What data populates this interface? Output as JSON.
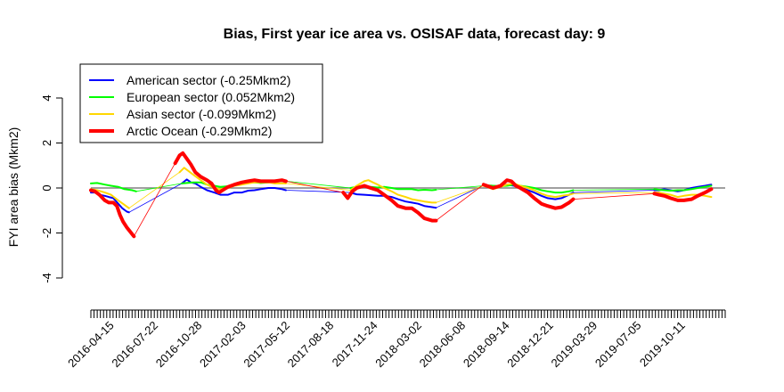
{
  "chart_data": {
    "type": "line",
    "title": "Bias, First year ice area vs. OSISAF data, forecast day: 9",
    "xlabel": "",
    "ylabel": "FYI area bias (Mkm2)",
    "ylim": [
      -4,
      4
    ],
    "y_ticks": [
      -4,
      -2,
      0,
      2,
      4
    ],
    "x_tick_labels": [
      "2016-04-15",
      "2016-07-22",
      "2016-10-28",
      "2017-02-03",
      "2017-05-12",
      "2017-08-18",
      "2017-11-24",
      "2018-03-02",
      "2018-06-08",
      "2018-09-14",
      "2018-12-21",
      "2019-03-29",
      "2019-07-05",
      "2019-10-11"
    ],
    "x_start": "2016-03-01",
    "x_end": "2020-01-15",
    "grid": false,
    "legend_position": "top-left",
    "zero_line": true,
    "zero_line_color": "#808080",
    "series": [
      {
        "name": "American sector (-0.25Mkm2)",
        "color": "#0000ff",
        "width": 2,
        "points": [
          [
            "2016-03-01",
            -0.2
          ],
          [
            "2016-03-10",
            -0.2
          ],
          [
            "2016-03-20",
            -0.3
          ],
          [
            "2016-04-01",
            -0.35
          ],
          [
            "2016-04-10",
            -0.4
          ],
          [
            "2016-04-20",
            -0.45
          ],
          [
            "2016-05-01",
            -0.7
          ],
          [
            "2016-05-10",
            -0.9
          ],
          [
            "2016-05-20",
            -1.05
          ],
          [
            "2016-05-25",
            -1.08
          ],
          [
            "2016-09-20",
            0.2
          ],
          [
            "2016-10-01",
            0.38
          ],
          [
            "2016-10-10",
            0.25
          ],
          [
            "2016-10-20",
            0.2
          ],
          [
            "2016-11-01",
            0.05
          ],
          [
            "2016-11-15",
            -0.1
          ],
          [
            "2016-12-01",
            -0.2
          ],
          [
            "2016-12-15",
            -0.3
          ],
          [
            "2017-01-01",
            -0.3
          ],
          [
            "2017-01-15",
            -0.2
          ],
          [
            "2017-02-01",
            -0.2
          ],
          [
            "2017-02-15",
            -0.12
          ],
          [
            "2017-03-01",
            -0.1
          ],
          [
            "2017-03-15",
            -0.05
          ],
          [
            "2017-04-01",
            0.0
          ],
          [
            "2017-04-15",
            0.0
          ],
          [
            "2017-05-01",
            -0.05
          ],
          [
            "2017-05-10",
            -0.1
          ],
          [
            "2017-10-01",
            -0.2
          ],
          [
            "2017-10-15",
            -0.28
          ],
          [
            "2017-11-01",
            -0.3
          ],
          [
            "2017-11-15",
            -0.32
          ],
          [
            "2017-12-01",
            -0.35
          ],
          [
            "2017-12-15",
            -0.35
          ],
          [
            "2018-01-01",
            -0.4
          ],
          [
            "2018-01-15",
            -0.5
          ],
          [
            "2018-02-01",
            -0.6
          ],
          [
            "2018-02-15",
            -0.65
          ],
          [
            "2018-03-01",
            -0.7
          ],
          [
            "2018-03-15",
            -0.8
          ],
          [
            "2018-04-01",
            -0.85
          ],
          [
            "2018-04-10",
            -0.88
          ],
          [
            "2018-07-25",
            0.12
          ],
          [
            "2018-08-01",
            0.1
          ],
          [
            "2018-08-15",
            0.05
          ],
          [
            "2018-09-01",
            0.1
          ],
          [
            "2018-09-15",
            0.15
          ],
          [
            "2018-10-01",
            0.1
          ],
          [
            "2018-10-15",
            0.0
          ],
          [
            "2018-11-01",
            -0.1
          ],
          [
            "2018-11-15",
            -0.2
          ],
          [
            "2018-12-01",
            -0.35
          ],
          [
            "2018-12-15",
            -0.45
          ],
          [
            "2019-01-01",
            -0.5
          ],
          [
            "2019-01-15",
            -0.45
          ],
          [
            "2019-02-01",
            -0.3
          ],
          [
            "2019-02-10",
            -0.2
          ],
          [
            "2019-08-10",
            -0.1
          ],
          [
            "2019-08-20",
            -0.1
          ],
          [
            "2019-09-01",
            -0.05
          ],
          [
            "2019-09-15",
            -0.1
          ],
          [
            "2019-10-01",
            -0.15
          ],
          [
            "2019-10-15",
            -0.1
          ],
          [
            "2019-11-01",
            0.0
          ],
          [
            "2019-11-15",
            0.05
          ],
          [
            "2019-12-01",
            0.1
          ],
          [
            "2019-12-15",
            0.15
          ]
        ]
      },
      {
        "name": "European sector (0.052Mkm2)",
        "color": "#00ff00",
        "width": 2,
        "points": [
          [
            "2016-03-01",
            0.2
          ],
          [
            "2016-03-15",
            0.22
          ],
          [
            "2016-04-01",
            0.15
          ],
          [
            "2016-04-15",
            0.1
          ],
          [
            "2016-05-01",
            0.05
          ],
          [
            "2016-05-15",
            -0.05
          ],
          [
            "2016-06-01",
            -0.1
          ],
          [
            "2016-06-10",
            -0.15
          ],
          [
            "2016-09-20",
            0.2
          ],
          [
            "2016-10-01",
            0.22
          ],
          [
            "2016-10-15",
            0.25
          ],
          [
            "2016-11-01",
            0.25
          ],
          [
            "2016-11-15",
            0.15
          ],
          [
            "2016-12-01",
            0.1
          ],
          [
            "2016-12-15",
            0.05
          ],
          [
            "2017-01-01",
            0.08
          ],
          [
            "2017-01-15",
            0.15
          ],
          [
            "2017-02-01",
            0.2
          ],
          [
            "2017-02-15",
            0.25
          ],
          [
            "2017-03-01",
            0.25
          ],
          [
            "2017-03-15",
            0.22
          ],
          [
            "2017-04-01",
            0.25
          ],
          [
            "2017-04-15",
            0.28
          ],
          [
            "2017-05-01",
            0.3
          ],
          [
            "2017-05-10",
            0.3
          ],
          [
            "2017-10-01",
            0.0
          ],
          [
            "2017-10-15",
            0.05
          ],
          [
            "2017-11-01",
            0.1
          ],
          [
            "2017-11-15",
            0.05
          ],
          [
            "2017-12-01",
            0.02
          ],
          [
            "2017-12-15",
            0.05
          ],
          [
            "2018-01-01",
            0.0
          ],
          [
            "2018-01-15",
            -0.05
          ],
          [
            "2018-02-01",
            -0.05
          ],
          [
            "2018-02-15",
            -0.05
          ],
          [
            "2018-03-01",
            -0.1
          ],
          [
            "2018-03-15",
            -0.08
          ],
          [
            "2018-04-01",
            -0.1
          ],
          [
            "2018-04-10",
            -0.08
          ],
          [
            "2018-07-25",
            0.1
          ],
          [
            "2018-08-01",
            0.12
          ],
          [
            "2018-08-15",
            0.1
          ],
          [
            "2018-09-01",
            0.08
          ],
          [
            "2018-09-15",
            0.1
          ],
          [
            "2018-10-01",
            0.15
          ],
          [
            "2018-10-15",
            0.1
          ],
          [
            "2018-11-01",
            0.05
          ],
          [
            "2018-11-15",
            0.0
          ],
          [
            "2018-12-01",
            -0.1
          ],
          [
            "2018-12-15",
            -0.15
          ],
          [
            "2019-01-01",
            -0.2
          ],
          [
            "2019-01-15",
            -0.2
          ],
          [
            "2019-02-01",
            -0.15
          ],
          [
            "2019-02-10",
            -0.1
          ],
          [
            "2019-08-10",
            -0.05
          ],
          [
            "2019-08-20",
            -0.08
          ],
          [
            "2019-09-01",
            -0.1
          ],
          [
            "2019-09-15",
            -0.12
          ],
          [
            "2019-10-01",
            -0.1
          ],
          [
            "2019-10-15",
            -0.1
          ],
          [
            "2019-11-01",
            -0.05
          ],
          [
            "2019-11-15",
            0.0
          ],
          [
            "2019-12-01",
            0.05
          ],
          [
            "2019-12-15",
            0.1
          ]
        ]
      },
      {
        "name": "Asian sector (-0.099Mkm2)",
        "color": "#ffd700",
        "width": 2,
        "points": [
          [
            "2016-03-01",
            -0.05
          ],
          [
            "2016-03-15",
            -0.1
          ],
          [
            "2016-04-01",
            -0.2
          ],
          [
            "2016-04-15",
            -0.3
          ],
          [
            "2016-05-01",
            -0.55
          ],
          [
            "2016-05-15",
            -0.75
          ],
          [
            "2016-05-25",
            -0.9
          ],
          [
            "2016-09-15",
            0.7
          ],
          [
            "2016-09-25",
            0.9
          ],
          [
            "2016-10-05",
            0.75
          ],
          [
            "2016-10-15",
            0.6
          ],
          [
            "2016-11-01",
            0.35
          ],
          [
            "2016-11-15",
            0.15
          ],
          [
            "2016-12-01",
            0.0
          ],
          [
            "2016-12-15",
            -0.05
          ],
          [
            "2017-01-01",
            0.0
          ],
          [
            "2017-01-15",
            0.1
          ],
          [
            "2017-02-01",
            0.15
          ],
          [
            "2017-02-15",
            0.2
          ],
          [
            "2017-03-01",
            0.25
          ],
          [
            "2017-03-15",
            0.25
          ],
          [
            "2017-04-01",
            0.25
          ],
          [
            "2017-04-15",
            0.2
          ],
          [
            "2017-05-01",
            0.2
          ],
          [
            "2017-05-10",
            0.2
          ],
          [
            "2017-10-01",
            -0.1
          ],
          [
            "2017-10-15",
            0.1
          ],
          [
            "2017-11-01",
            0.3
          ],
          [
            "2017-11-10",
            0.35
          ],
          [
            "2017-11-20",
            0.25
          ],
          [
            "2017-12-01",
            0.15
          ],
          [
            "2017-12-15",
            0.0
          ],
          [
            "2018-01-01",
            -0.15
          ],
          [
            "2018-01-15",
            -0.3
          ],
          [
            "2018-02-01",
            -0.4
          ],
          [
            "2018-02-15",
            -0.5
          ],
          [
            "2018-03-01",
            -0.55
          ],
          [
            "2018-03-15",
            -0.6
          ],
          [
            "2018-04-01",
            -0.65
          ],
          [
            "2018-04-10",
            -0.65
          ],
          [
            "2018-07-25",
            0.1
          ],
          [
            "2018-08-01",
            0.05
          ],
          [
            "2018-08-15",
            -0.05
          ],
          [
            "2018-09-01",
            0.05
          ],
          [
            "2018-09-15",
            0.15
          ],
          [
            "2018-10-01",
            0.2
          ],
          [
            "2018-10-15",
            0.1
          ],
          [
            "2018-11-01",
            0.0
          ],
          [
            "2018-11-15",
            -0.1
          ],
          [
            "2018-12-01",
            -0.25
          ],
          [
            "2018-12-15",
            -0.35
          ],
          [
            "2019-01-01",
            -0.4
          ],
          [
            "2019-01-15",
            -0.35
          ],
          [
            "2019-02-01",
            -0.3
          ],
          [
            "2019-02-10",
            -0.25
          ],
          [
            "2019-08-10",
            -0.2
          ],
          [
            "2019-08-20",
            -0.2
          ],
          [
            "2019-09-01",
            -0.25
          ],
          [
            "2019-09-15",
            -0.3
          ],
          [
            "2019-10-01",
            -0.4
          ],
          [
            "2019-10-15",
            -0.35
          ],
          [
            "2019-11-01",
            -0.3
          ],
          [
            "2019-11-15",
            -0.3
          ],
          [
            "2019-12-01",
            -0.35
          ],
          [
            "2019-12-15",
            -0.4
          ]
        ]
      },
      {
        "name": "Arctic Ocean (-0.29Mkm2)",
        "color": "#ff0000",
        "width": 4,
        "points": [
          [
            "2016-03-01",
            -0.1
          ],
          [
            "2016-03-10",
            -0.15
          ],
          [
            "2016-03-20",
            -0.3
          ],
          [
            "2016-04-01",
            -0.55
          ],
          [
            "2016-04-10",
            -0.65
          ],
          [
            "2016-04-20",
            -0.65
          ],
          [
            "2016-04-28",
            -0.8
          ],
          [
            "2016-05-05",
            -1.2
          ],
          [
            "2016-05-12",
            -1.5
          ],
          [
            "2016-05-20",
            -1.75
          ],
          [
            "2016-05-28",
            -1.95
          ],
          [
            "2016-06-05",
            -2.15
          ],
          [
            "2016-09-05",
            1.1
          ],
          [
            "2016-09-15",
            1.45
          ],
          [
            "2016-09-22",
            1.55
          ],
          [
            "2016-10-01",
            1.3
          ],
          [
            "2016-10-10",
            1.05
          ],
          [
            "2016-10-20",
            0.7
          ],
          [
            "2016-11-01",
            0.5
          ],
          [
            "2016-11-15",
            0.35
          ],
          [
            "2016-11-25",
            0.2
          ],
          [
            "2016-12-05",
            -0.1
          ],
          [
            "2016-12-12",
            -0.2
          ],
          [
            "2016-12-20",
            -0.1
          ],
          [
            "2017-01-01",
            0.05
          ],
          [
            "2017-01-15",
            0.15
          ],
          [
            "2017-02-01",
            0.25
          ],
          [
            "2017-02-15",
            0.3
          ],
          [
            "2017-03-01",
            0.35
          ],
          [
            "2017-03-15",
            0.3
          ],
          [
            "2017-04-01",
            0.3
          ],
          [
            "2017-04-15",
            0.3
          ],
          [
            "2017-05-01",
            0.35
          ],
          [
            "2017-05-10",
            0.3
          ],
          [
            "2017-09-15",
            -0.2
          ],
          [
            "2017-09-25",
            -0.45
          ],
          [
            "2017-10-05",
            -0.15
          ],
          [
            "2017-10-15",
            0.0
          ],
          [
            "2017-11-01",
            0.1
          ],
          [
            "2017-11-15",
            0.0
          ],
          [
            "2017-12-01",
            -0.1
          ],
          [
            "2017-12-15",
            -0.3
          ],
          [
            "2018-01-01",
            -0.55
          ],
          [
            "2018-01-15",
            -0.8
          ],
          [
            "2018-02-01",
            -0.9
          ],
          [
            "2018-02-15",
            -0.9
          ],
          [
            "2018-03-01",
            -1.1
          ],
          [
            "2018-03-15",
            -1.35
          ],
          [
            "2018-04-01",
            -1.45
          ],
          [
            "2018-04-10",
            -1.45
          ],
          [
            "2018-07-25",
            0.15
          ],
          [
            "2018-08-01",
            0.1
          ],
          [
            "2018-08-15",
            0.0
          ],
          [
            "2018-09-01",
            0.1
          ],
          [
            "2018-09-15",
            0.35
          ],
          [
            "2018-09-25",
            0.3
          ],
          [
            "2018-10-05",
            0.1
          ],
          [
            "2018-10-15",
            0.0
          ],
          [
            "2018-11-01",
            -0.2
          ],
          [
            "2018-11-15",
            -0.45
          ],
          [
            "2018-12-01",
            -0.7
          ],
          [
            "2018-12-15",
            -0.8
          ],
          [
            "2019-01-01",
            -0.9
          ],
          [
            "2019-01-15",
            -0.85
          ],
          [
            "2019-02-01",
            -0.65
          ],
          [
            "2019-02-10",
            -0.5
          ],
          [
            "2019-08-10",
            -0.25
          ],
          [
            "2019-08-20",
            -0.3
          ],
          [
            "2019-09-01",
            -0.35
          ],
          [
            "2019-09-15",
            -0.45
          ],
          [
            "2019-10-01",
            -0.55
          ],
          [
            "2019-10-15",
            -0.55
          ],
          [
            "2019-11-01",
            -0.5
          ],
          [
            "2019-11-15",
            -0.35
          ],
          [
            "2019-12-01",
            -0.2
          ],
          [
            "2019-12-15",
            -0.05
          ]
        ]
      }
    ]
  }
}
